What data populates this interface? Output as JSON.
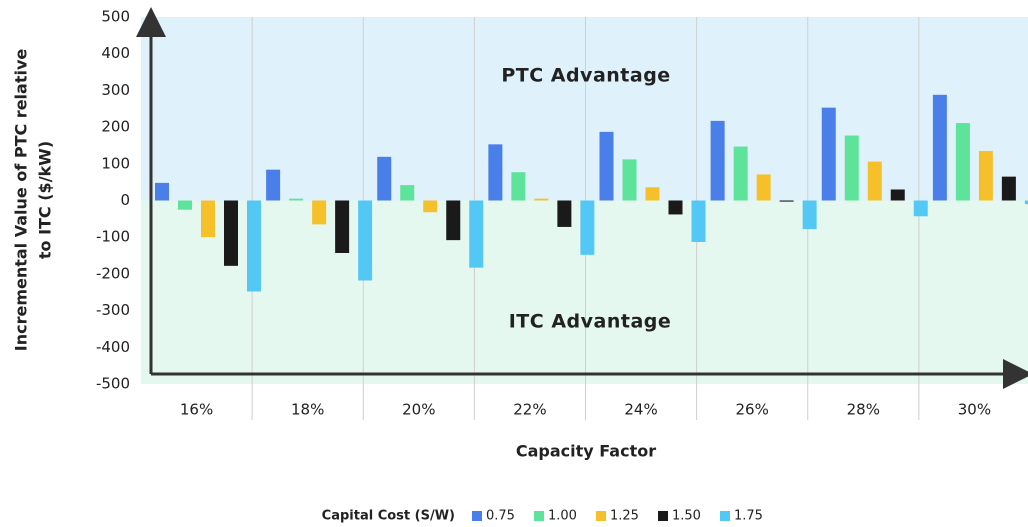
{
  "chart_data": {
    "type": "bar",
    "y_label": [
      "Incremental Value of PTC relative",
      "to ITC ($/kW)"
    ],
    "x_label": "Capacity Factor",
    "annotations": [
      "PTC Advantage",
      "ITC Advantage"
    ],
    "legend_title": "Capital Cost (S/W)",
    "categories": [
      "16%",
      "18%",
      "20%",
      "22%",
      "24%",
      "26%",
      "28%",
      "30%"
    ],
    "series": [
      {
        "name": "0.75",
        "color": "#4a7ee8",
        "values": [
          48,
          84,
          119,
          153,
          187,
          217,
          253,
          288
        ]
      },
      {
        "name": "1.00",
        "color": "#5de39a",
        "values": [
          -25,
          5,
          42,
          77,
          112,
          147,
          177,
          211
        ]
      },
      {
        "name": "1.25",
        "color": "#f5c02a",
        "values": [
          -100,
          -65,
          -32,
          5,
          36,
          71,
          106,
          135
        ]
      },
      {
        "name": "1.50",
        "color": "#1a1a1a",
        "values": [
          -178,
          -143,
          -108,
          -72,
          -38,
          -3,
          30,
          65
        ]
      },
      {
        "name": "1.75",
        "color": "#54c8f5",
        "values": [
          -248,
          -218,
          -183,
          -148,
          -113,
          -78,
          -43,
          -10
        ]
      }
    ],
    "ylim": [
      -500,
      500
    ],
    "yticks": [
      -500,
      -400,
      -300,
      -200,
      -100,
      0,
      100,
      200,
      300,
      400,
      500
    ],
    "grid": true
  }
}
